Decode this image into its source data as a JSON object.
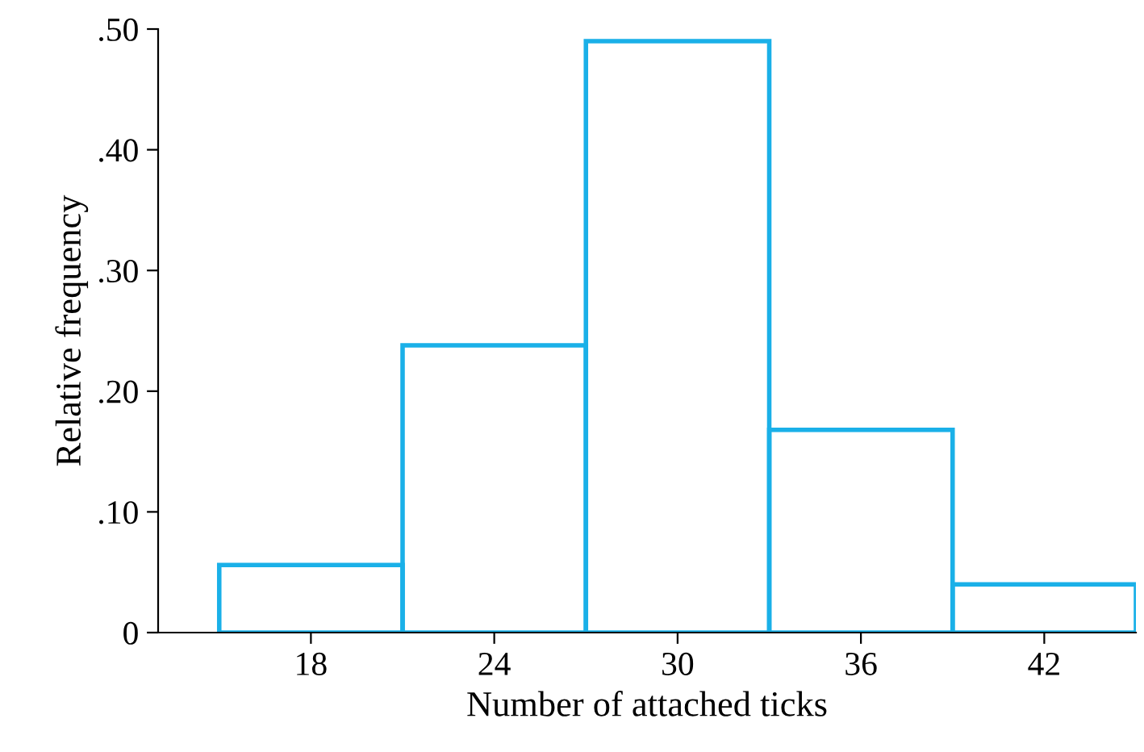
{
  "chart_data": {
    "type": "histogram",
    "xlabel": "Number of attached ticks",
    "ylabel": "Relative frequency",
    "bins": [
      15,
      21,
      27,
      33,
      39,
      45
    ],
    "values": [
      0.056,
      0.238,
      0.49,
      0.168,
      0.04
    ],
    "color": "#1ab0e8",
    "xlim": [
      13,
      45
    ],
    "xticks": [
      18,
      24,
      30,
      36,
      42
    ],
    "ylim": [
      0,
      0.5
    ],
    "yticks": [
      0,
      {
        "value": 0.1,
        "label": ".10"
      },
      {
        "value": 0.2,
        "label": ".20"
      },
      {
        "value": 0.3,
        "label": ".30"
      },
      {
        "value": 0.4,
        "label": ".40"
      },
      {
        "value": 0.5,
        "label": ".50"
      }
    ],
    "grid": false
  }
}
